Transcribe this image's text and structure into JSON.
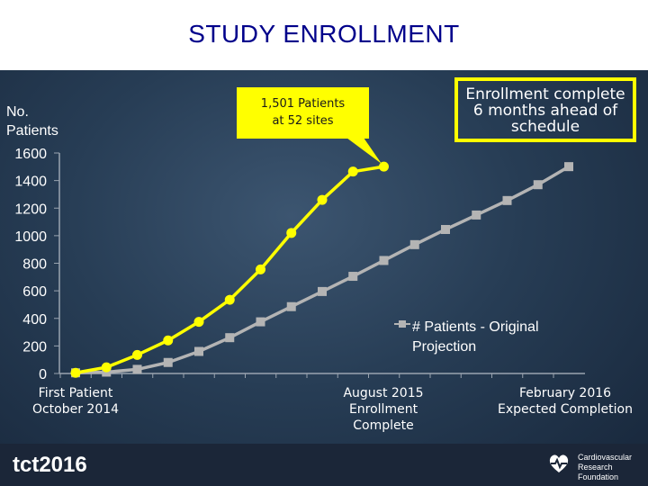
{
  "header": {
    "title": "STUDY ENROLLMENT"
  },
  "chart_data": {
    "type": "line",
    "title": "STUDY ENROLLMENT",
    "ylabel": "No. Patients",
    "xlabel": "",
    "ylim": [
      0,
      1600
    ],
    "yticks": [
      0,
      200,
      400,
      600,
      800,
      1000,
      1200,
      1400,
      1600
    ],
    "x": [
      0,
      1,
      2,
      3,
      4,
      5,
      6,
      7,
      8,
      9,
      10,
      11,
      12,
      13,
      14,
      15,
      16
    ],
    "x_tick_labels": [
      {
        "x": 0,
        "line1": "First Patient",
        "line2": "October 2014",
        "line3": ""
      },
      {
        "x": 10,
        "line1": "August 2015",
        "line2": "Enrollment",
        "line3": "Complete"
      },
      {
        "x": 16,
        "line1": "February 2016",
        "line2": "Expected  Completion",
        "line3": ""
      }
    ],
    "grid": false,
    "legend_position": "right",
    "series": [
      {
        "name": "",
        "color": "#ffff00",
        "marker": "circle",
        "x": [
          0,
          1,
          2,
          3,
          4,
          5,
          6,
          7,
          8,
          9,
          10
        ],
        "values": [
          5,
          45,
          135,
          240,
          375,
          535,
          755,
          1020,
          1260,
          1465,
          1501
        ]
      },
      {
        "name": "# Patients - Original Projection",
        "color": "#b4b4b4",
        "marker": "square",
        "x": [
          0,
          1,
          2,
          3,
          4,
          5,
          6,
          7,
          8,
          9,
          10,
          11,
          12,
          13,
          14,
          15,
          16
        ],
        "values": [
          5,
          10,
          30,
          80,
          160,
          260,
          375,
          485,
          595,
          705,
          820,
          935,
          1045,
          1150,
          1255,
          1370,
          1501
        ]
      }
    ],
    "annotations": {
      "callout_line1": "1,501 Patients",
      "callout_line2": "at 52 sites",
      "note_line1": "Enrollment complete",
      "note_line2": "6 months ahead of",
      "note_line3": "schedule"
    }
  },
  "ylabel_line1": "No.",
  "ylabel_line2": "Patients",
  "legend": {
    "line1": "# Patients - Original",
    "line2": "Projection"
  },
  "footer": {
    "left_logo": "tct2016",
    "right_logo_line1": "Cardiovascular",
    "right_logo_line2": "Research Foundation"
  },
  "colors": {
    "accent": "#ffff00",
    "projection": "#b4b4b4",
    "title": "#00008b",
    "axis": "#9aa4b0"
  }
}
